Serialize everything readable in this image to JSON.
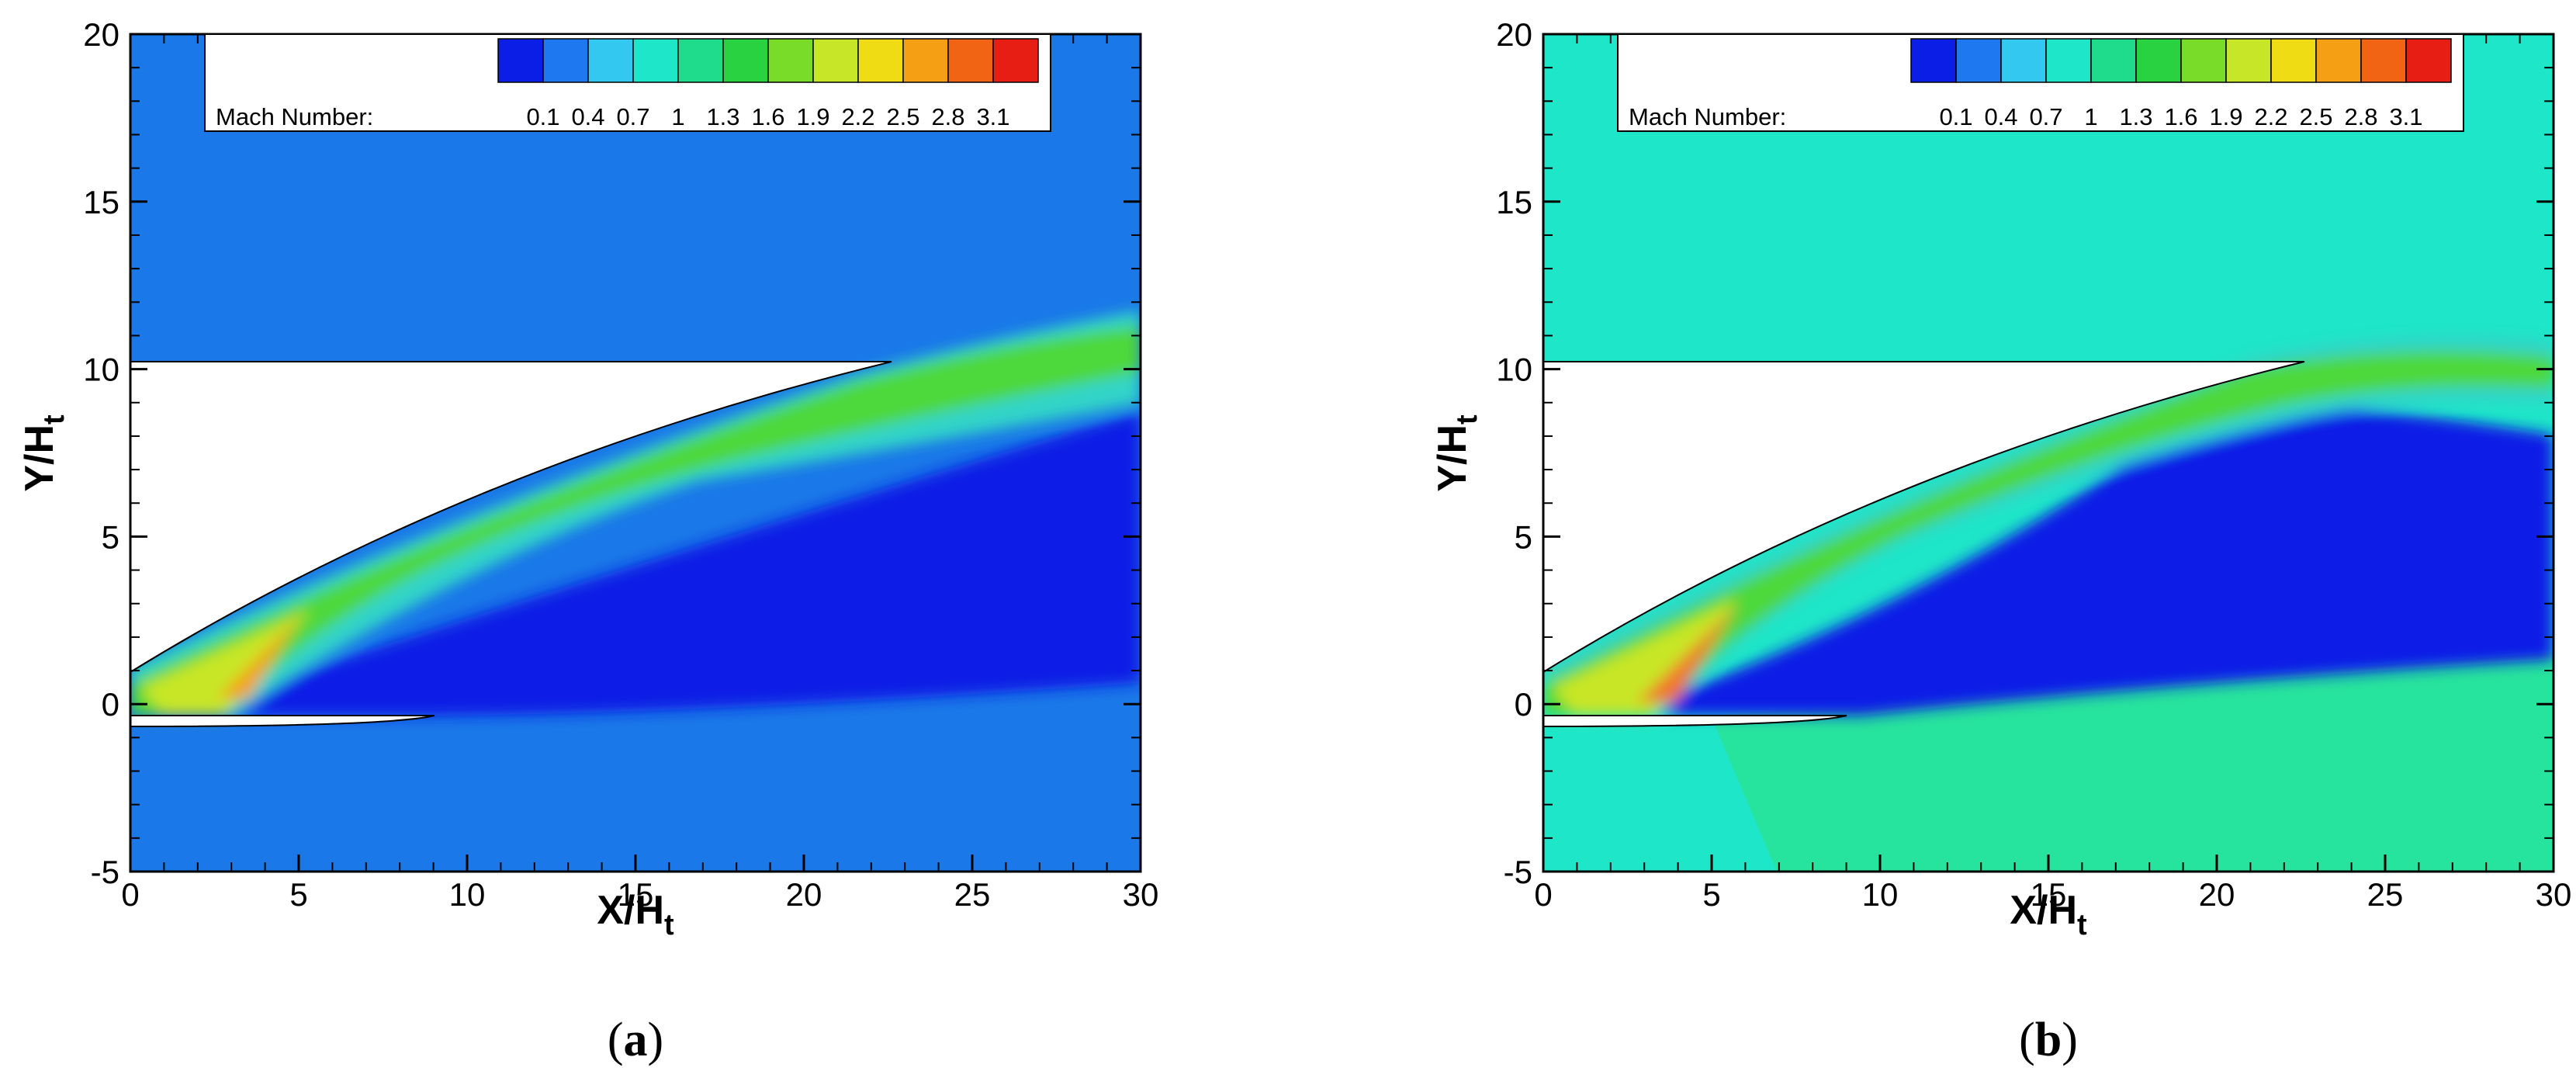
{
  "figure": {
    "panels": [
      {
        "caption_prefix": "(",
        "caption_letter": "a",
        "caption_suffix": ")"
      },
      {
        "caption_prefix": "(",
        "caption_letter": "b",
        "caption_suffix": ")"
      }
    ]
  },
  "chart_data": [
    {
      "type": "heatmap",
      "panel": "a",
      "title": "",
      "xlabel": {
        "main": "X/H",
        "sub": "t"
      },
      "ylabel": {
        "main": "Y/H",
        "sub": "t"
      },
      "xlim": [
        0,
        30
      ],
      "ylim": [
        -5,
        20
      ],
      "xticks": [
        0,
        5,
        10,
        15,
        20,
        25,
        30
      ],
      "yticks": [
        -5,
        0,
        5,
        10,
        15,
        20
      ],
      "colorbar": {
        "label": "Mach Number:",
        "levels": [
          0.1,
          0.4,
          0.7,
          1,
          1.3,
          1.6,
          1.9,
          2.2,
          2.5,
          2.8,
          3.1
        ],
        "level_labels": [
          "0.1",
          "0.4",
          "0.7",
          "1",
          "1.3",
          "1.6",
          "1.9",
          "2.2",
          "2.5",
          "2.8",
          "3.1"
        ],
        "colors": [
          "#0a1ee6",
          "#1e78f0",
          "#32c8f0",
          "#1ee6c8",
          "#1edc8c",
          "#28d240",
          "#78dc28",
          "#c8e628",
          "#f0dc14",
          "#f5a014",
          "#f06414",
          "#e61e14"
        ],
        "placement": "top-right"
      },
      "freestream_mach": 0.4,
      "plume_core_mach": 2.3,
      "plume_peak_mach": 2.8,
      "wake_mach": 0.2,
      "upper_wall": {
        "x_end": 22.5,
        "y": 10.3
      },
      "lower_wall": {
        "x_end": 9,
        "y": -0.3
      },
      "nozzle_exit": {
        "x": 0,
        "y_bottom": 0,
        "y_top": 1
      }
    },
    {
      "type": "heatmap",
      "panel": "b",
      "title": "",
      "xlabel": {
        "main": "X/H",
        "sub": "t"
      },
      "ylabel": {
        "main": "Y/H",
        "sub": "t"
      },
      "xlim": [
        0,
        30
      ],
      "ylim": [
        -5,
        20
      ],
      "xticks": [
        0,
        5,
        10,
        15,
        20,
        25,
        30
      ],
      "yticks": [
        -5,
        0,
        5,
        10,
        15,
        20
      ],
      "colorbar": {
        "label": "Mach Number:",
        "levels": [
          0.1,
          0.4,
          0.7,
          1,
          1.3,
          1.6,
          1.9,
          2.2,
          2.5,
          2.8,
          3.1
        ],
        "level_labels": [
          "0.1",
          "0.4",
          "0.7",
          "1",
          "1.3",
          "1.6",
          "1.9",
          "2.2",
          "2.5",
          "2.8",
          "3.1"
        ],
        "colors": [
          "#0a1ee6",
          "#1e78f0",
          "#32c8f0",
          "#1ee6c8",
          "#1edc8c",
          "#28d240",
          "#78dc28",
          "#c8e628",
          "#f0dc14",
          "#f5a014",
          "#f06414",
          "#e61e14"
        ],
        "placement": "top-right"
      },
      "freestream_mach": 1.2,
      "plume_core_mach": 2.3,
      "plume_peak_mach": 2.9,
      "wake_mach": 0.2,
      "upper_wall": {
        "x_end": 22.5,
        "y": 10.3
      },
      "lower_wall": {
        "x_end": 9,
        "y": -0.3
      },
      "nozzle_exit": {
        "x": 0,
        "y_bottom": 0,
        "y_top": 1
      }
    }
  ]
}
